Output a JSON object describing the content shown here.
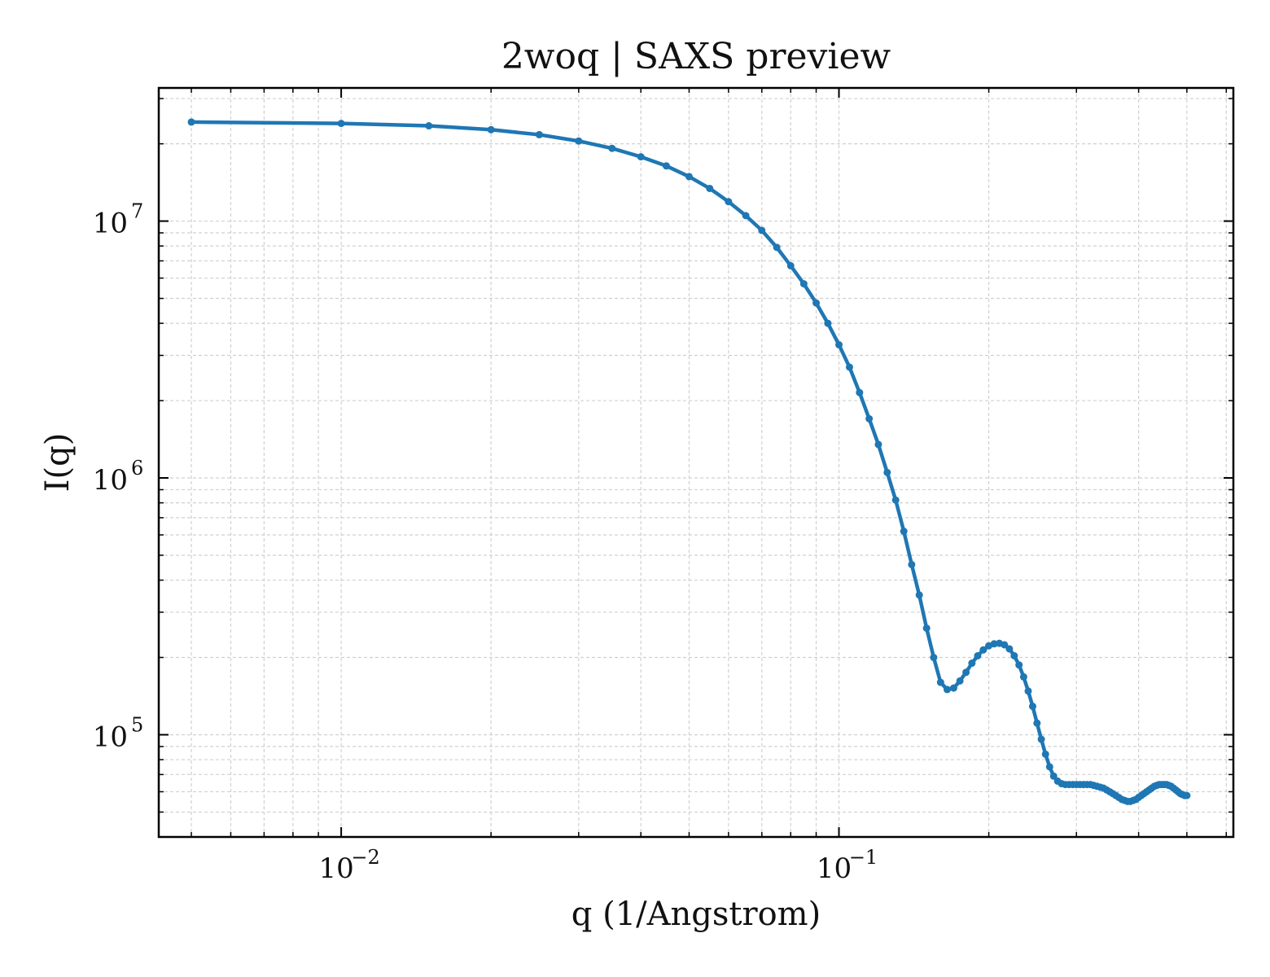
{
  "chart_data": {
    "type": "line",
    "title": "2woq | SAXS preview",
    "xlabel": "q (1/Angstrom)",
    "ylabel": "I(q)",
    "xscale": "log",
    "yscale": "log",
    "xlim": [
      0.0043,
      0.62
    ],
    "ylim": [
      40000,
      33000000
    ],
    "grid": true,
    "legend": "none",
    "x_ticks": [
      {
        "value": 0.01,
        "base": "10",
        "exp": "−2"
      },
      {
        "value": 0.1,
        "base": "10",
        "exp": "−1"
      }
    ],
    "y_ticks": [
      {
        "value": 100000,
        "base": "10",
        "exp": "5"
      },
      {
        "value": 1000000,
        "base": "10",
        "exp": "6"
      },
      {
        "value": 10000000,
        "base": "10",
        "exp": "7"
      }
    ],
    "series": [
      {
        "color": "#1f77b4",
        "x": [
          0.005,
          0.01,
          0.015,
          0.02,
          0.025,
          0.03,
          0.035,
          0.04,
          0.045,
          0.05,
          0.055,
          0.06,
          0.065,
          0.07,
          0.075,
          0.08,
          0.085,
          0.09,
          0.095,
          0.1,
          0.105,
          0.11,
          0.115,
          0.12,
          0.125,
          0.13,
          0.135,
          0.14,
          0.145,
          0.15,
          0.155,
          0.16,
          0.165,
          0.17,
          0.175,
          0.18,
          0.185,
          0.19,
          0.195,
          0.2,
          0.205,
          0.21,
          0.215,
          0.22,
          0.225,
          0.23,
          0.235,
          0.24,
          0.245,
          0.25,
          0.255,
          0.26,
          0.265,
          0.27,
          0.275,
          0.28,
          0.285,
          0.29,
          0.295,
          0.3,
          0.305,
          0.31,
          0.315,
          0.32,
          0.325,
          0.33,
          0.335,
          0.34,
          0.345,
          0.35,
          0.355,
          0.36,
          0.365,
          0.37,
          0.375,
          0.38,
          0.385,
          0.39,
          0.395,
          0.4,
          0.405,
          0.41,
          0.415,
          0.42,
          0.425,
          0.43,
          0.435,
          0.44,
          0.445,
          0.45,
          0.455,
          0.46,
          0.465,
          0.47,
          0.475,
          0.48,
          0.485,
          0.49,
          0.495,
          0.5
        ],
        "y": [
          24300000,
          24000000,
          23500000,
          22700000,
          21700000,
          20500000,
          19200000,
          17800000,
          16400000,
          14900000,
          13400000,
          11900000,
          10500000,
          9200000,
          7900000,
          6700000,
          5700000,
          4800000,
          4000000,
          3300000,
          2700000,
          2150000,
          1700000,
          1350000,
          1050000,
          820000,
          620000,
          460000,
          350000,
          260000,
          200000,
          160000,
          150000,
          152000,
          162000,
          175000,
          190000,
          203000,
          214000,
          222000,
          226000,
          227000,
          224000,
          216000,
          203000,
          187000,
          168000,
          148000,
          129000,
          111000,
          96000,
          84000,
          75000,
          69000,
          66000,
          64500,
          64000,
          64000,
          64000,
          64000,
          64000,
          64000,
          64000,
          64000,
          63500,
          63000,
          62500,
          62000,
          61000,
          60000,
          59000,
          58000,
          57000,
          56000,
          55500,
          55000,
          55000,
          55500,
          56000,
          57000,
          58000,
          59000,
          60000,
          61000,
          62000,
          63000,
          63500,
          64000,
          64000,
          64000,
          64000,
          63500,
          63000,
          62000,
          61000,
          60000,
          59000,
          58500,
          58000,
          58000
        ]
      }
    ]
  }
}
